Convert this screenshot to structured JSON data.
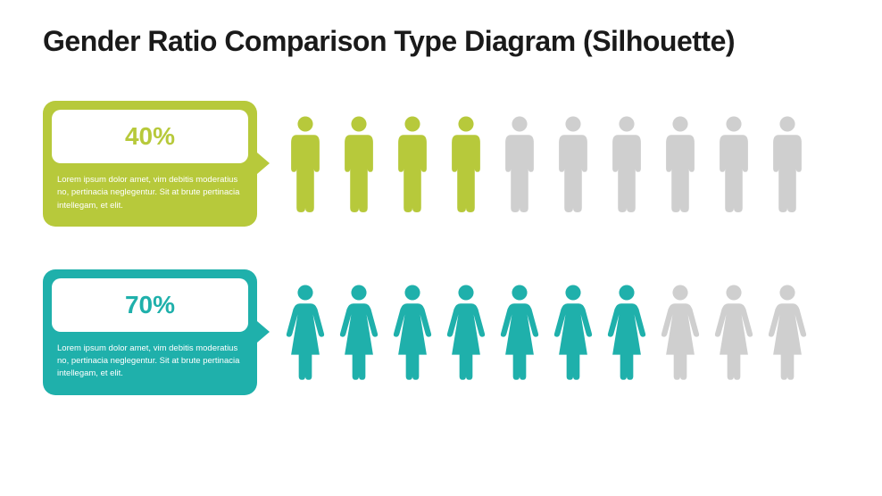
{
  "title": "Gender Ratio Comparison Type Diagram (Silhouette)",
  "background_color": "#ffffff",
  "inactive_color": "#cfcfcf",
  "icon_count": 10,
  "rows": [
    {
      "type": "male",
      "percent_label": "40%",
      "filled_count": 4,
      "accent_color": "#b7c93b",
      "percent_text_color": "#b7c93b",
      "description": "Lorem ipsum dolor amet, vim debitis moderatius no, pertinacia neglegentur. Sit at brute pertinacia intellegam, et elit."
    },
    {
      "type": "female",
      "percent_label": "70%",
      "filled_count": 7,
      "accent_color": "#1fb0ab",
      "percent_text_color": "#1fb0ab",
      "description": "Lorem ipsum dolor amet, vim debitis moderatius no, pertinacia neglegentur. Sit at brute pertinacia intellegam, et elit."
    }
  ]
}
